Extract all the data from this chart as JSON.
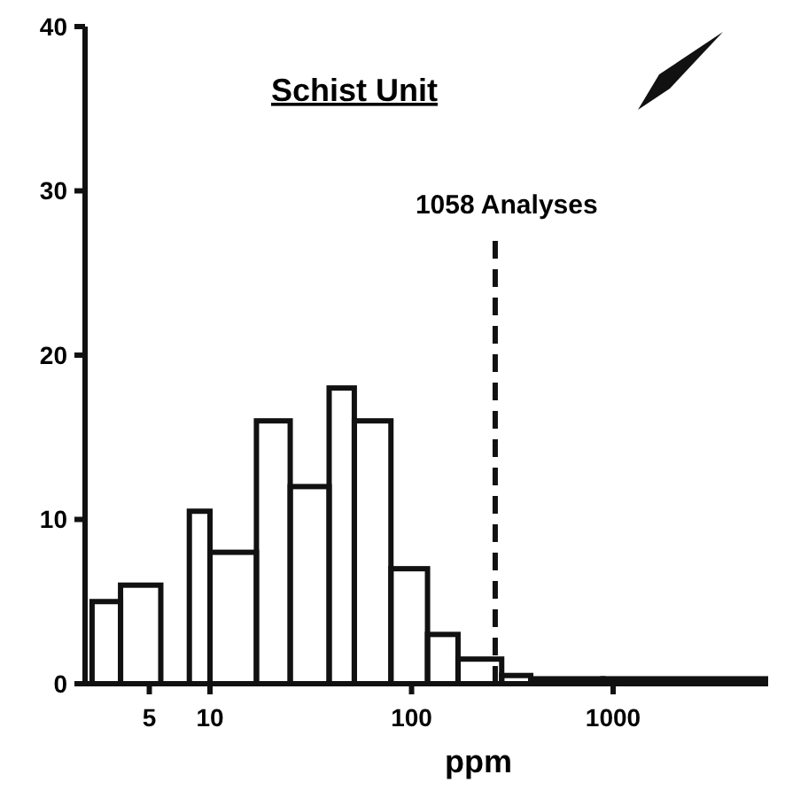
{
  "chart_data": {
    "type": "histogram",
    "title": "Schist Unit",
    "xlabel": "ppm",
    "log": "x",
    "bins": [
      2.6,
      3.6,
      5.7,
      7.9,
      10,
      17,
      25,
      39,
      52,
      79,
      120,
      170,
      280,
      390,
      890,
      5700
    ],
    "values": [
      5,
      6,
      0,
      10.5,
      8,
      16,
      12,
      18,
      16,
      7,
      3,
      1.5,
      0.5,
      0.3,
      0.3
    ],
    "color": "#111111",
    "xlim": [
      2.4,
      5700
    ],
    "xticks": [
      5,
      10,
      100,
      1000
    ],
    "ylim": [
      0,
      40
    ],
    "yticks": [
      0,
      10,
      20,
      30,
      40
    ],
    "ref_lines": [
      {
        "axis": "x",
        "value": 260,
        "label": "1058 Analyses",
        "line_style": "dashed"
      }
    ],
    "grid": false
  }
}
